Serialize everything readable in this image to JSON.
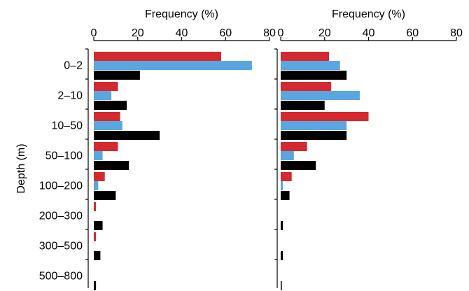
{
  "chart_data": [
    {
      "type": "bar",
      "orientation": "horizontal",
      "xlabel": "Frequency (%)",
      "ylabel": "Depth (m)",
      "xlim": [
        0,
        80
      ],
      "xticks": [
        "0",
        "20",
        "40",
        "60",
        "80"
      ],
      "categories": [
        "0–2",
        "2–10",
        "10–50",
        "50–100",
        "100–200",
        "200–300",
        "300–500",
        "500–800"
      ],
      "colors": [
        "#d42a2f",
        "#5aa6e0",
        "#000000"
      ],
      "series": [
        {
          "values": [
            58,
            11,
            12,
            11,
            5,
            1,
            1,
            0
          ]
        },
        {
          "values": [
            72,
            8,
            13,
            4,
            2,
            0,
            0,
            0
          ]
        },
        {
          "values": [
            21,
            15,
            30,
            16,
            10,
            4,
            3,
            1
          ]
        }
      ]
    },
    {
      "type": "bar",
      "orientation": "horizontal",
      "xlabel": "Frequency (%)",
      "xlim": [
        0,
        80
      ],
      "xticks": [
        "0",
        "20",
        "40",
        "60",
        "80"
      ],
      "categories": [
        "0–2",
        "2–10",
        "10–50",
        "50–100",
        "100–200",
        "200–300",
        "300–500",
        "500–800"
      ],
      "colors": [
        "#d42a2f",
        "#5aa6e0",
        "#000000"
      ],
      "series": [
        {
          "values": [
            22,
            23,
            40,
            12,
            5,
            0,
            0,
            0
          ]
        },
        {
          "values": [
            27,
            36,
            30,
            6,
            1,
            0,
            0,
            0
          ]
        },
        {
          "values": [
            30,
            20,
            30,
            16,
            4,
            1,
            1,
            0.5
          ]
        }
      ]
    }
  ]
}
